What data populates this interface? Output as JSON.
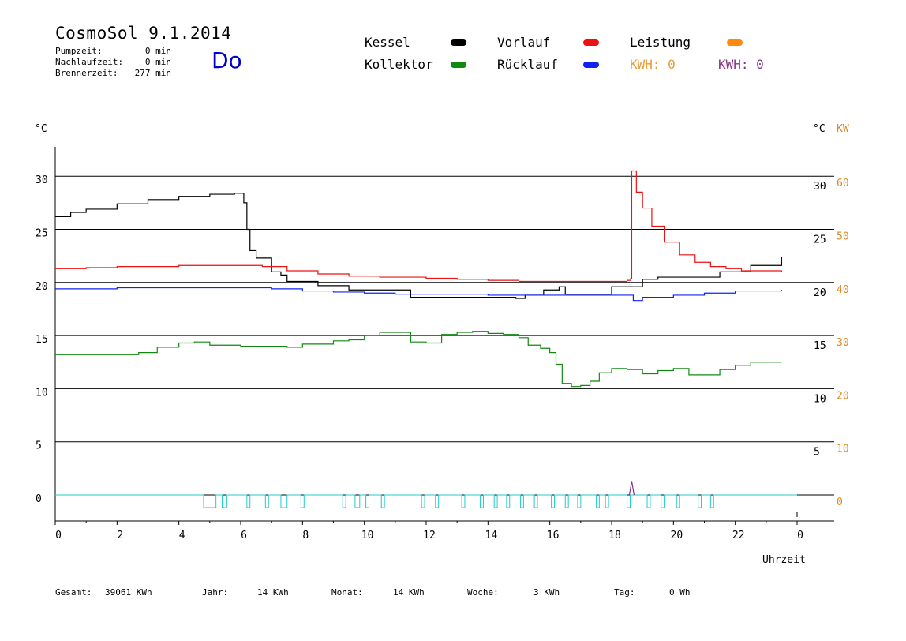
{
  "header": {
    "title": "CosmoSol 9.1.2014",
    "day": "Do",
    "stats": [
      {
        "label": "Pumpzeit:",
        "value": "0 min"
      },
      {
        "label": "Nachlaufzeit:",
        "value": "0 min"
      },
      {
        "label": "Brennerzeit:",
        "value": "277 min"
      }
    ]
  },
  "legend": {
    "items": [
      {
        "label": "Kessel",
        "color": "#000000"
      },
      {
        "label": "Vorlauf",
        "color": "#ee1111"
      },
      {
        "label": "Leistung",
        "color": "#ff8811"
      },
      {
        "label": "Kollektor",
        "color": "#118811"
      },
      {
        "label": "Rücklauf",
        "color": "#1122ee"
      }
    ],
    "kwh_orange": "KWH: 0",
    "kwh_purple": "KWH: 0"
  },
  "axis_units": {
    "left": "°C",
    "right_c": "°C",
    "right_kw": "KW",
    "x": "Uhrzeit"
  },
  "footer": [
    {
      "label": "Gesamt:",
      "value": "39061 KWh"
    },
    {
      "label": "Jahr:",
      "value": "14 KWh"
    },
    {
      "label": "Monat:",
      "value": "14 KWh"
    },
    {
      "label": "Woche:",
      "value": "3 KWh"
    },
    {
      "label": "Tag:",
      "value": "0 Wh"
    }
  ],
  "chart_data": {
    "type": "line",
    "xlabel": "Uhrzeit",
    "ylabel": "°C",
    "xlim": [
      0,
      24
    ],
    "ylim": [
      -2.5,
      32.5
    ],
    "y2label": "KW",
    "y2lim": [
      -5,
      65
    ],
    "x_ticks": [
      "0",
      "2",
      "4",
      "6",
      "8",
      "10",
      "12",
      "14",
      "16",
      "18",
      "20",
      "22",
      "0"
    ],
    "y_ticks_left": [
      "0",
      "5",
      "10",
      "15",
      "20",
      "25",
      "30"
    ],
    "y_ticks_right_c": [
      "5",
      "10",
      "15",
      "20",
      "25",
      "30"
    ],
    "y_ticks_right_kw": [
      "0",
      "10",
      "20",
      "30",
      "40",
      "50",
      "60"
    ],
    "grid": true,
    "series": [
      {
        "name": "Kessel",
        "color": "#000000",
        "x": [
          0,
          0.5,
          1,
          2,
          3,
          4,
          5,
          5.8,
          6.0,
          6.1,
          6.2,
          6.3,
          6.5,
          7.0,
          7.3,
          7.5,
          8.5,
          9.5,
          11.5,
          12,
          13,
          14,
          14.9,
          15.2,
          15.8,
          16.3,
          16.5,
          17.0,
          18.0,
          19.0,
          19.5,
          20.5,
          21.5,
          22.5,
          23.5
        ],
        "y": [
          26.2,
          26.6,
          26.9,
          27.4,
          27.8,
          28.1,
          28.3,
          28.4,
          28.4,
          27.5,
          25.0,
          23.0,
          22.3,
          21.0,
          20.7,
          20.1,
          19.7,
          19.3,
          18.6,
          18.6,
          18.6,
          18.6,
          18.5,
          18.8,
          19.3,
          19.6,
          18.9,
          18.9,
          19.6,
          20.3,
          20.5,
          20.5,
          21.0,
          21.6,
          22.4
        ]
      },
      {
        "name": "Vorlauf",
        "color": "#ee1111",
        "x": [
          0,
          1,
          2,
          3,
          4,
          5,
          6,
          6.7,
          7.5,
          8.5,
          9.5,
          10.5,
          12,
          13,
          14,
          15,
          16,
          17,
          18.5,
          18.62,
          18.65,
          18.8,
          19.0,
          19.3,
          19.7,
          20.2,
          20.7,
          21.2,
          21.7,
          22.2,
          23.5
        ],
        "y": [
          21.3,
          21.4,
          21.5,
          21.5,
          21.6,
          21.6,
          21.6,
          21.5,
          21.1,
          20.8,
          20.6,
          20.5,
          20.4,
          20.3,
          20.2,
          20.1,
          20.1,
          20.1,
          20.2,
          20.4,
          30.5,
          28.5,
          27.0,
          25.3,
          23.8,
          22.6,
          21.9,
          21.5,
          21.3,
          21.1,
          21.0
        ]
      },
      {
        "name": "Rücklauf",
        "color": "#1122ee",
        "x": [
          0,
          1,
          2,
          4,
          6,
          7,
          8,
          9,
          10,
          11,
          12,
          13,
          14,
          15,
          16,
          17,
          18,
          18.6,
          18.7,
          19,
          20,
          21,
          22,
          23.5
        ],
        "y": [
          19.4,
          19.4,
          19.5,
          19.5,
          19.5,
          19.4,
          19.2,
          19.1,
          19.0,
          18.9,
          18.9,
          18.9,
          18.8,
          18.8,
          18.8,
          18.8,
          18.8,
          18.8,
          18.3,
          18.6,
          18.8,
          19.0,
          19.2,
          19.3
        ]
      },
      {
        "name": "Kollektor",
        "color": "#118811",
        "x": [
          0,
          1,
          2,
          2.7,
          3.3,
          4,
          4.5,
          5,
          6,
          7,
          7.5,
          8,
          9,
          9.5,
          10,
          10.5,
          11,
          11.5,
          12,
          12.5,
          13,
          13.5,
          14,
          14.5,
          15,
          15.3,
          15.7,
          16,
          16.2,
          16.4,
          16.7,
          17,
          17.3,
          17.6,
          18,
          18.5,
          19,
          19.5,
          20,
          20.5,
          21,
          21.5,
          22,
          22.5,
          23.5
        ],
        "y": [
          13.2,
          13.2,
          13.2,
          13.4,
          13.9,
          14.3,
          14.4,
          14.1,
          14.0,
          14.0,
          13.9,
          14.2,
          14.5,
          14.6,
          15.0,
          15.3,
          15.3,
          14.4,
          14.3,
          15.1,
          15.3,
          15.4,
          15.2,
          15.1,
          14.8,
          14.1,
          13.8,
          13.4,
          12.3,
          10.5,
          10.2,
          10.3,
          10.7,
          11.5,
          11.9,
          11.8,
          11.4,
          11.7,
          11.9,
          11.3,
          11.3,
          11.8,
          12.2,
          12.5,
          12.5
        ]
      }
    ],
    "brenner_pulses": [
      [
        4.8,
        5.2
      ],
      [
        5.4,
        5.55
      ],
      [
        6.2,
        6.3
      ],
      [
        6.8,
        6.9
      ],
      [
        7.3,
        7.5
      ],
      [
        7.95,
        8.05
      ],
      [
        9.3,
        9.4
      ],
      [
        9.7,
        9.85
      ],
      [
        10.05,
        10.15
      ],
      [
        10.55,
        10.65
      ],
      [
        11.85,
        11.95
      ],
      [
        12.3,
        12.4
      ],
      [
        13.15,
        13.25
      ],
      [
        13.75,
        13.85
      ],
      [
        14.2,
        14.3
      ],
      [
        14.6,
        14.7
      ],
      [
        15.05,
        15.15
      ],
      [
        15.5,
        15.6
      ],
      [
        16.05,
        16.15
      ],
      [
        16.5,
        16.6
      ],
      [
        16.9,
        17.0
      ],
      [
        17.5,
        17.6
      ],
      [
        17.8,
        17.9
      ],
      [
        18.5,
        18.6
      ],
      [
        19.15,
        19.25
      ],
      [
        19.6,
        19.7
      ],
      [
        20.1,
        20.2
      ],
      [
        20.8,
        20.9
      ],
      [
        21.2,
        21.3
      ]
    ],
    "leistung_spike": [
      18.65,
      1.3
    ]
  }
}
